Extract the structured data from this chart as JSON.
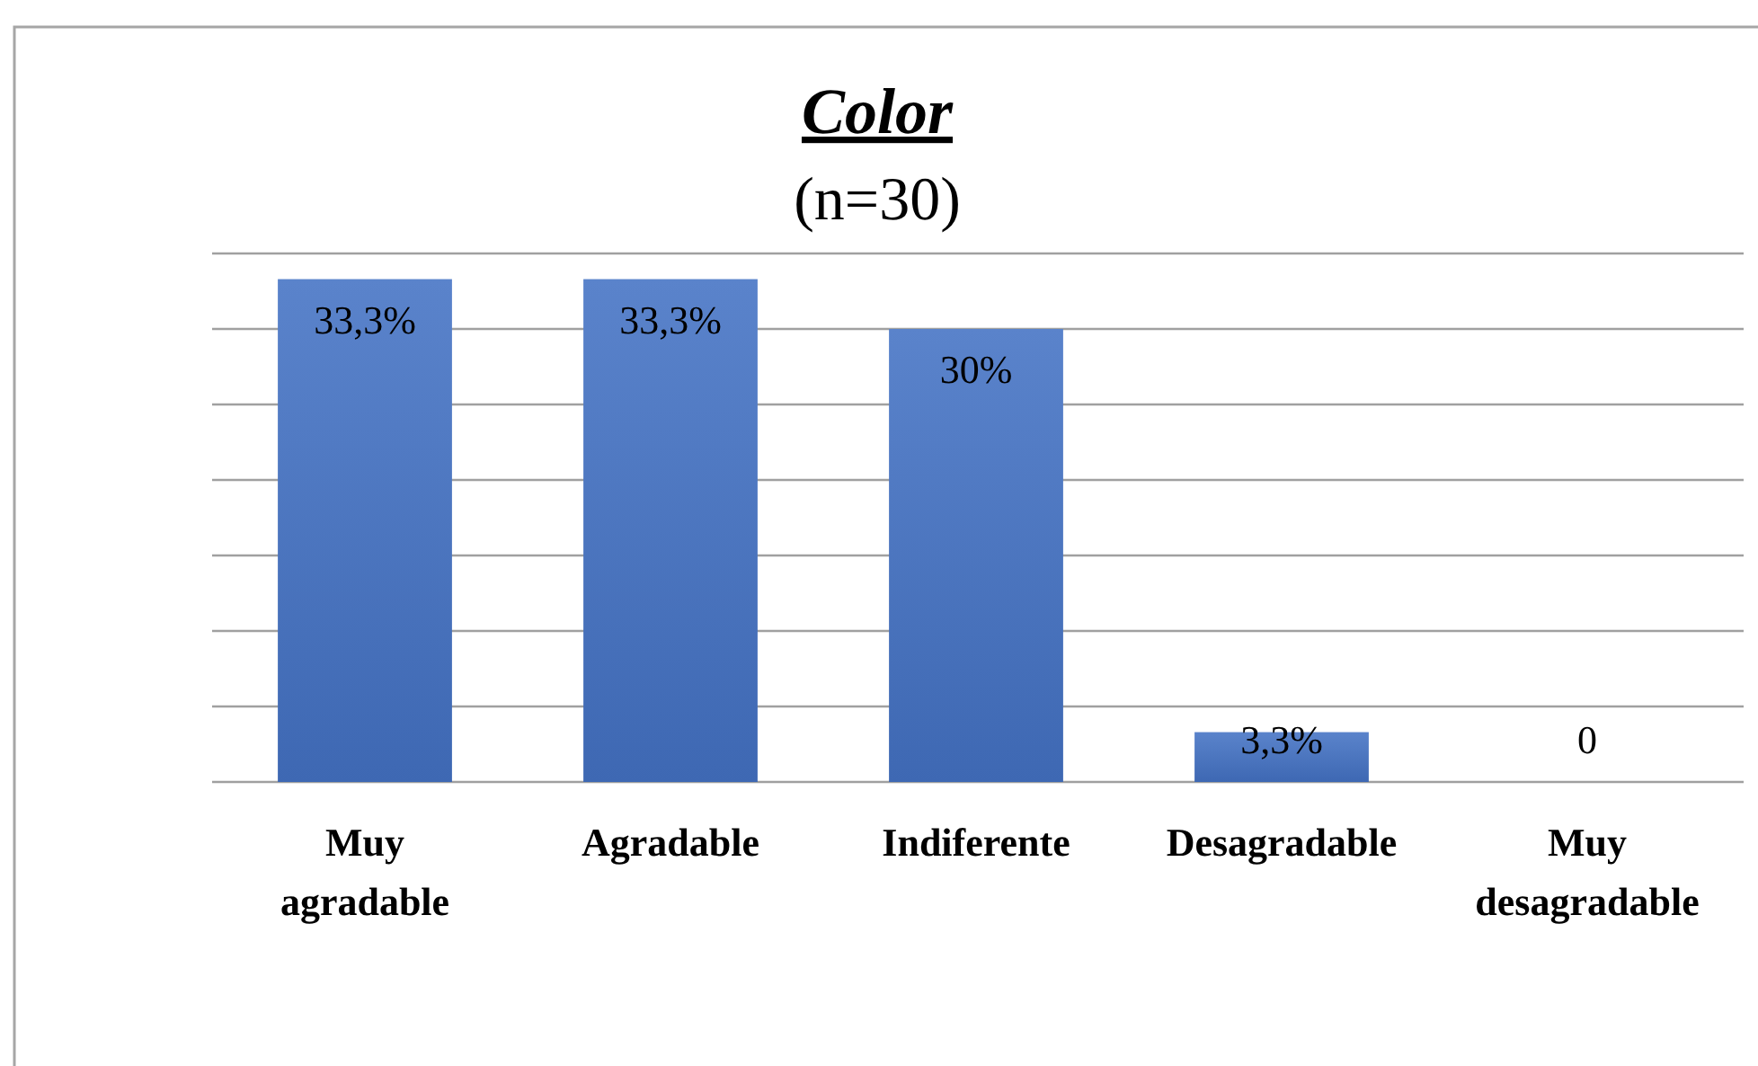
{
  "chart_data": {
    "type": "bar",
    "title": "Color",
    "subtitle": "(n=30)",
    "categories": [
      "Muy agradable",
      "Agradable",
      "Indiferente",
      "Desagradable",
      "Muy desagradable"
    ],
    "values": [
      33.3,
      33.3,
      30,
      3.3,
      0
    ],
    "value_labels": [
      "33,3%",
      "33,3%",
      "30%",
      "3,3%",
      "0"
    ],
    "color": "#4472c4",
    "ylim": [
      0,
      35
    ],
    "yticks": [
      {
        "value": 0,
        "label": null
      },
      {
        "value": 5,
        "label": null
      },
      {
        "value": 10,
        "label": null
      },
      {
        "value": 15,
        "label": null
      },
      {
        "value": 20,
        "label": null
      },
      {
        "value": 25,
        "label": null
      },
      {
        "value": 30,
        "label": null
      },
      {
        "value": 35,
        "label": null
      }
    ],
    "tick_labels": "x",
    "grid": "y"
  }
}
